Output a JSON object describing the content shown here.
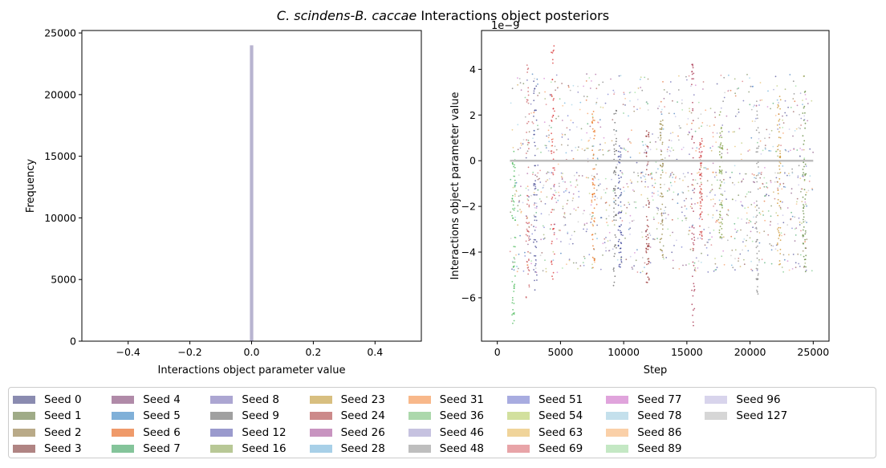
{
  "figure_title": "C. scindens-B. caccae Interactions object posteriors",
  "title_italic": "C. scindens-B. caccae",
  "title_rest": " Interactions object posteriors",
  "chart_data": [
    {
      "type": "bar",
      "subtype": "histogram",
      "xlabel": "Interactions object parameter value",
      "ylabel": "Frequency",
      "xlim": [
        -0.55,
        0.55
      ],
      "ylim": [
        0,
        25200
      ],
      "xticks": [
        -0.4,
        -0.2,
        0.0,
        0.2,
        0.4
      ],
      "xtick_labels": [
        "−0.4",
        "−0.2",
        "0.0",
        "0.2",
        "0.4"
      ],
      "yticks": [
        0,
        5000,
        10000,
        15000,
        20000,
        25000
      ],
      "ytick_labels": [
        "0",
        "5000",
        "10000",
        "15000",
        "20000",
        "25000"
      ],
      "bars": [
        {
          "x": 0.0,
          "width": 0.011,
          "value": 24000
        }
      ],
      "bar_color": "#b8b4d0",
      "grid": false
    },
    {
      "type": "scatter",
      "xlabel": "Step",
      "ylabel": "Interactions object parameter value",
      "offset_text": "1e−9",
      "xlim": [
        -1250,
        26250
      ],
      "ylim": [
        -7.9,
        5.7
      ],
      "xticks": [
        0,
        5000,
        10000,
        15000,
        20000,
        25000
      ],
      "xtick_labels": [
        "0",
        "5000",
        "10000",
        "15000",
        "20000",
        "25000"
      ],
      "yticks": [
        -6,
        -4,
        -2,
        0,
        2,
        4
      ],
      "ytick_labels": [
        "−6",
        "−4",
        "−2",
        "0",
        "2",
        "4"
      ],
      "reference_line": {
        "y": 0.0,
        "x": [
          1000,
          25000
        ],
        "color": "#bdbdbd"
      },
      "step_range": [
        1000,
        25000
      ],
      "value_range": [
        -7.3,
        5.2
      ],
      "dense_columns": [
        {
          "x": 1300,
          "min": -7.3,
          "max": 0.5,
          "color": "#3cb44b"
        },
        {
          "x": 2400,
          "min": -6.0,
          "max": 4.2,
          "color": "#c44e52"
        },
        {
          "x": 3000,
          "min": -5.7,
          "max": 3.5,
          "color": "#3a3d8c"
        },
        {
          "x": 4400,
          "min": -5.6,
          "max": 5.2,
          "color": "#d62728"
        },
        {
          "x": 7600,
          "min": -4.8,
          "max": 2.2,
          "color": "#e8680c"
        },
        {
          "x": 9300,
          "min": -5.5,
          "max": 2.3,
          "color": "#555555"
        },
        {
          "x": 9700,
          "min": -4.7,
          "max": 0.7,
          "color": "#1f2a8c"
        },
        {
          "x": 11900,
          "min": -5.4,
          "max": 1.5,
          "color": "#8b1a1a"
        },
        {
          "x": 13000,
          "min": -4.3,
          "max": 1.8,
          "color": "#8c7a2e"
        },
        {
          "x": 15500,
          "min": -7.3,
          "max": 4.4,
          "color": "#a01f3d"
        },
        {
          "x": 16100,
          "min": -3.5,
          "max": 1.0,
          "color": "#cc2c2c"
        },
        {
          "x": 17700,
          "min": -3.8,
          "max": 2.2,
          "color": "#6b8e23"
        },
        {
          "x": 20600,
          "min": -6.0,
          "max": 2.7,
          "color": "#7f7f7f"
        },
        {
          "x": 22300,
          "min": -4.6,
          "max": 2.9,
          "color": "#c88a1c"
        },
        {
          "x": 24300,
          "min": -5.0,
          "max": 3.9,
          "color": "#4e7a27"
        }
      ],
      "series_colors": [
        "#3f3f8c",
        "#6b7f4a",
        "#8c7650",
        "#8c4a4a",
        "#7f4a7a",
        "#2f6fb4",
        "#e0601f",
        "#3fa466",
        "#6a62b0",
        "#6e6e6e",
        "#5050a8",
        "#92a85c",
        "#c8a04a",
        "#b85a5a",
        "#a8589a",
        "#5aa8d8",
        "#f89050",
        "#6ac07a",
        "#9a9ad0",
        "#9a9a9a",
        "#6a72cc",
        "#b8c870",
        "#e4b85c",
        "#d86a70",
        "#d07acc",
        "#9ad0e4",
        "#f8b070",
        "#90dc90",
        "#bcb8e4",
        "#c0c0c0"
      ],
      "grid": false
    }
  ],
  "legend": {
    "items": [
      {
        "label": "Seed 0",
        "color": "#8a8bb0"
      },
      {
        "label": "Seed 1",
        "color": "#9fab87"
      },
      {
        "label": "Seed 2",
        "color": "#b9aa88"
      },
      {
        "label": "Seed 3",
        "color": "#b08483"
      },
      {
        "label": "Seed 4",
        "color": "#b08aa8"
      },
      {
        "label": "Seed 5",
        "color": "#80b0d8"
      },
      {
        "label": "Seed 6",
        "color": "#ef9a6a"
      },
      {
        "label": "Seed 7",
        "color": "#84c49a"
      },
      {
        "label": "Seed 8",
        "color": "#aca6d2"
      },
      {
        "label": "Seed 9",
        "color": "#a0a0a0"
      },
      {
        "label": "Seed 12",
        "color": "#9a9acd"
      },
      {
        "label": "Seed 16",
        "color": "#b8c896"
      },
      {
        "label": "Seed 23",
        "color": "#d8bf80"
      },
      {
        "label": "Seed 24",
        "color": "#cc8a8a"
      },
      {
        "label": "Seed 26",
        "color": "#c894c0"
      },
      {
        "label": "Seed 28",
        "color": "#a8d0e8"
      },
      {
        "label": "Seed 31",
        "color": "#f8b88a"
      },
      {
        "label": "Seed 36",
        "color": "#acd8ac"
      },
      {
        "label": "Seed 46",
        "color": "#c6c2e0"
      },
      {
        "label": "Seed 48",
        "color": "#bebebe"
      },
      {
        "label": "Seed 51",
        "color": "#a8ace0"
      },
      {
        "label": "Seed 54",
        "color": "#d2e09e"
      },
      {
        "label": "Seed 63",
        "color": "#f0d49a"
      },
      {
        "label": "Seed 69",
        "color": "#e8a4a8"
      },
      {
        "label": "Seed 77",
        "color": "#e0a4dc"
      },
      {
        "label": "Seed 78",
        "color": "#c4e0ec"
      },
      {
        "label": "Seed 86",
        "color": "#fad0a8"
      },
      {
        "label": "Seed 89",
        "color": "#c4e8c4"
      },
      {
        "label": "Seed 96",
        "color": "#d8d4ec"
      },
      {
        "label": "Seed 127",
        "color": "#d6d6d6"
      }
    ]
  }
}
